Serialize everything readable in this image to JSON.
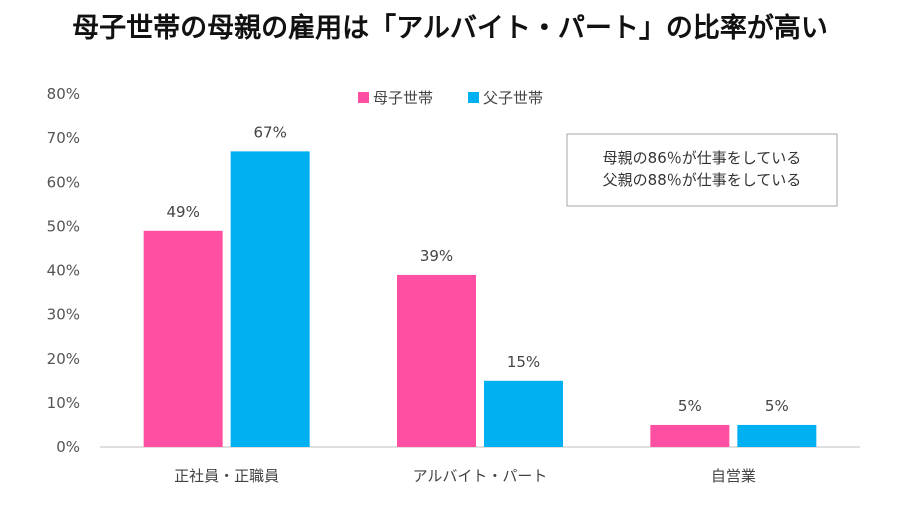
{
  "title": "母子世帯の母親の雇用は「アルバイト・パート」の比率が高い",
  "note": [
    "母親の86％が仕事をしている",
    "父親の88％が仕事をしている"
  ],
  "colors": {
    "mother": "#ff4fa3",
    "father": "#00b0f0",
    "axis": "#bfbfbf"
  },
  "chart_data": {
    "type": "bar",
    "categories": [
      "正社員・正職員",
      "アルバイト・パート",
      "自営業"
    ],
    "series": [
      {
        "name": "母子世帯",
        "values": [
          49,
          39,
          5
        ],
        "labels": [
          "49%",
          "39%",
          "5%"
        ]
      },
      {
        "name": "父子世帯",
        "values": [
          67,
          15,
          5
        ],
        "labels": [
          "67%",
          "15%",
          "5%"
        ]
      }
    ],
    "ylim": [
      0,
      80
    ],
    "yticks": [
      "0%",
      "10%",
      "20%",
      "30%",
      "40%",
      "50%",
      "60%",
      "70%",
      "80%"
    ],
    "legend": "top-center",
    "grid": false
  }
}
